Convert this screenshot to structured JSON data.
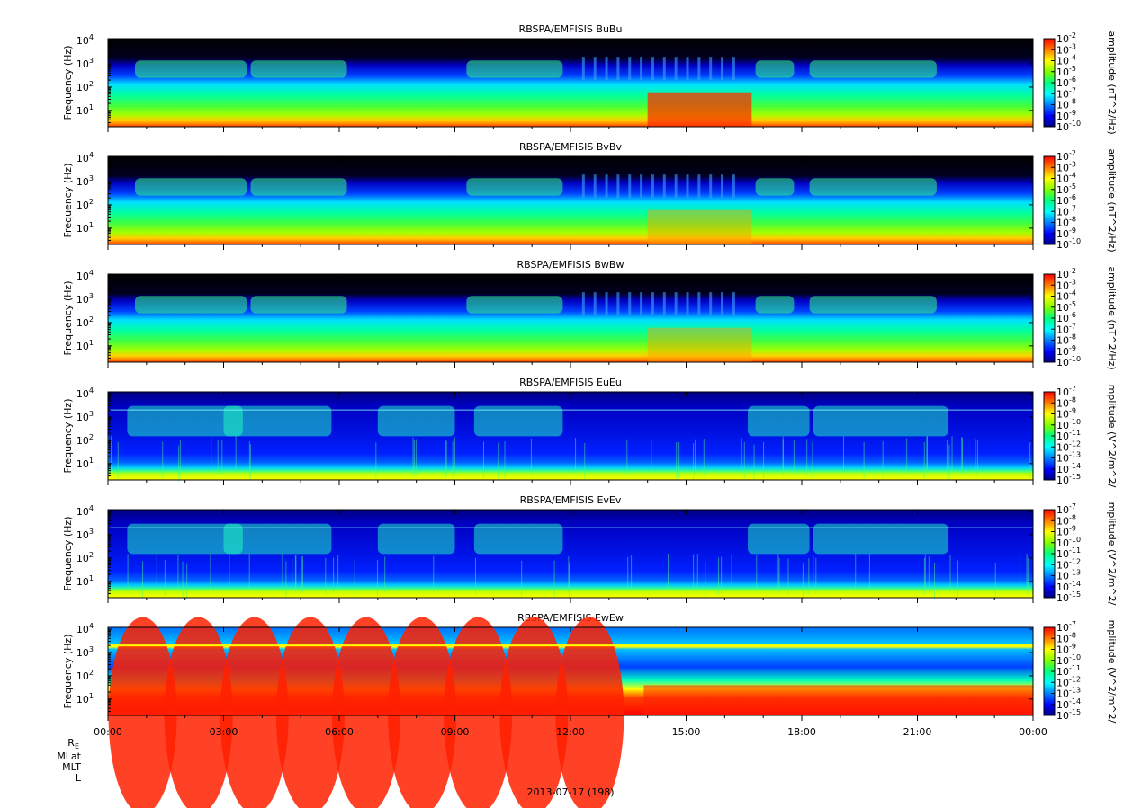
{
  "chart_data": {
    "type": "heatmap",
    "x_tick_labels": [
      "00:00",
      "03:00",
      "06:00",
      "09:00",
      "12:00",
      "15:00",
      "18:00",
      "21:00",
      "00:00"
    ],
    "x_range_hours": [
      0,
      24
    ],
    "ephemeris_labels": {
      "re": "R",
      "re_sub": "E",
      "mlat": "MLat",
      "mlt": "MLT",
      "l": "L"
    },
    "date_label": "2013-07-17 (198)",
    "y_scale": "log",
    "y_range_hz": [
      2,
      12000
    ],
    "colormap": [
      "#000080",
      "#0000ff",
      "#0080ff",
      "#00ffff",
      "#00ff80",
      "#80ff00",
      "#ffff00",
      "#ff8000",
      "#ff0000"
    ],
    "panels": [
      {
        "title": "RBSPA/EMFISIS  BuBu",
        "ylabel": "Frequency (Hz)",
        "y_ticks": [
          {
            "mant": "10",
            "exp": "1",
            "v": 10
          },
          {
            "mant": "10",
            "exp": "2",
            "v": 100
          },
          {
            "mant": "10",
            "exp": "3",
            "v": 1000
          },
          {
            "mant": "10",
            "exp": "4",
            "v": 10000
          }
        ],
        "zlabel": "amplitude (nT^2/Hz)",
        "z_ticks": [
          {
            "mant": "10",
            "exp": "-2"
          },
          {
            "mant": "10",
            "exp": "-3"
          },
          {
            "mant": "10",
            "exp": "-4"
          },
          {
            "mant": "10",
            "exp": "-5"
          },
          {
            "mant": "10",
            "exp": "-6"
          },
          {
            "mant": "10",
            "exp": "-7"
          },
          {
            "mant": "10",
            "exp": "-8"
          },
          {
            "mant": "10",
            "exp": "-9"
          },
          {
            "mant": "10",
            "exp": "-10"
          }
        ],
        "z_range_log10": [
          -10,
          -2
        ]
      },
      {
        "title": "RBSPA/EMFISIS  BvBv",
        "ylabel": "Frequency (Hz)",
        "y_ticks": [
          {
            "mant": "10",
            "exp": "1",
            "v": 10
          },
          {
            "mant": "10",
            "exp": "2",
            "v": 100
          },
          {
            "mant": "10",
            "exp": "3",
            "v": 1000
          },
          {
            "mant": "10",
            "exp": "4",
            "v": 10000
          }
        ],
        "zlabel": "amplitude (nT^2/Hz)",
        "z_ticks": [
          {
            "mant": "10",
            "exp": "-2"
          },
          {
            "mant": "10",
            "exp": "-3"
          },
          {
            "mant": "10",
            "exp": "-4"
          },
          {
            "mant": "10",
            "exp": "-5"
          },
          {
            "mant": "10",
            "exp": "-6"
          },
          {
            "mant": "10",
            "exp": "-7"
          },
          {
            "mant": "10",
            "exp": "-8"
          },
          {
            "mant": "10",
            "exp": "-9"
          },
          {
            "mant": "10",
            "exp": "-10"
          }
        ],
        "z_range_log10": [
          -10,
          -2
        ]
      },
      {
        "title": "RBSPA/EMFISIS  BwBw",
        "ylabel": "Frequency (Hz)",
        "y_ticks": [
          {
            "mant": "10",
            "exp": "1",
            "v": 10
          },
          {
            "mant": "10",
            "exp": "2",
            "v": 100
          },
          {
            "mant": "10",
            "exp": "3",
            "v": 1000
          },
          {
            "mant": "10",
            "exp": "4",
            "v": 10000
          }
        ],
        "zlabel": "amplitude (nT^2/Hz)",
        "z_ticks": [
          {
            "mant": "10",
            "exp": "-2"
          },
          {
            "mant": "10",
            "exp": "-3"
          },
          {
            "mant": "10",
            "exp": "-4"
          },
          {
            "mant": "10",
            "exp": "-5"
          },
          {
            "mant": "10",
            "exp": "-6"
          },
          {
            "mant": "10",
            "exp": "-7"
          },
          {
            "mant": "10",
            "exp": "-8"
          },
          {
            "mant": "10",
            "exp": "-9"
          },
          {
            "mant": "10",
            "exp": "-10"
          }
        ],
        "z_range_log10": [
          -10,
          -2
        ]
      },
      {
        "title": "RBSPA/EMFISIS  EuEu",
        "ylabel": "Frequency (Hz)",
        "y_ticks": [
          {
            "mant": "10",
            "exp": "1",
            "v": 10
          },
          {
            "mant": "10",
            "exp": "2",
            "v": 100
          },
          {
            "mant": "10",
            "exp": "3",
            "v": 1000
          },
          {
            "mant": "10",
            "exp": "4",
            "v": 10000
          }
        ],
        "zlabel": "mplitude (V^2/m^2/",
        "z_ticks": [
          {
            "mant": "10",
            "exp": "-7"
          },
          {
            "mant": "10",
            "exp": "-8"
          },
          {
            "mant": "10",
            "exp": "-9"
          },
          {
            "mant": "10",
            "exp": "-10"
          },
          {
            "mant": "10",
            "exp": "-11"
          },
          {
            "mant": "10",
            "exp": "-12"
          },
          {
            "mant": "10",
            "exp": "-13"
          },
          {
            "mant": "10",
            "exp": "-14"
          },
          {
            "mant": "10",
            "exp": "-15"
          }
        ],
        "z_range_log10": [
          -15,
          -7
        ]
      },
      {
        "title": "RBSPA/EMFISIS  EvEv",
        "ylabel": "Frequency (Hz)",
        "y_ticks": [
          {
            "mant": "10",
            "exp": "1",
            "v": 10
          },
          {
            "mant": "10",
            "exp": "2",
            "v": 100
          },
          {
            "mant": "10",
            "exp": "3",
            "v": 1000
          },
          {
            "mant": "10",
            "exp": "4",
            "v": 10000
          }
        ],
        "zlabel": "mplitude (V^2/m^2/",
        "z_ticks": [
          {
            "mant": "10",
            "exp": "-7"
          },
          {
            "mant": "10",
            "exp": "-8"
          },
          {
            "mant": "10",
            "exp": "-9"
          },
          {
            "mant": "10",
            "exp": "-10"
          },
          {
            "mant": "10",
            "exp": "-11"
          },
          {
            "mant": "10",
            "exp": "-12"
          },
          {
            "mant": "10",
            "exp": "-13"
          },
          {
            "mant": "10",
            "exp": "-14"
          },
          {
            "mant": "10",
            "exp": "-15"
          }
        ],
        "z_range_log10": [
          -15,
          -7
        ]
      },
      {
        "title": "RBSPA/EMFISIS  EwEw",
        "ylabel": "Frequency (Hz)",
        "y_ticks": [
          {
            "mant": "10",
            "exp": "1",
            "v": 10
          },
          {
            "mant": "10",
            "exp": "2",
            "v": 100
          },
          {
            "mant": "10",
            "exp": "3",
            "v": 1000
          },
          {
            "mant": "10",
            "exp": "4",
            "v": 10000
          }
        ],
        "zlabel": "mplitude (V^2/m^2/",
        "z_ticks": [
          {
            "mant": "10",
            "exp": "-7"
          },
          {
            "mant": "10",
            "exp": "-8"
          },
          {
            "mant": "10",
            "exp": "-9"
          },
          {
            "mant": "10",
            "exp": "-10"
          },
          {
            "mant": "10",
            "exp": "-11"
          },
          {
            "mant": "10",
            "exp": "-12"
          },
          {
            "mant": "10",
            "exp": "-13"
          },
          {
            "mant": "10",
            "exp": "-14"
          },
          {
            "mant": "10",
            "exp": "-15"
          }
        ],
        "z_range_log10": [
          -15,
          -7
        ]
      }
    ]
  }
}
